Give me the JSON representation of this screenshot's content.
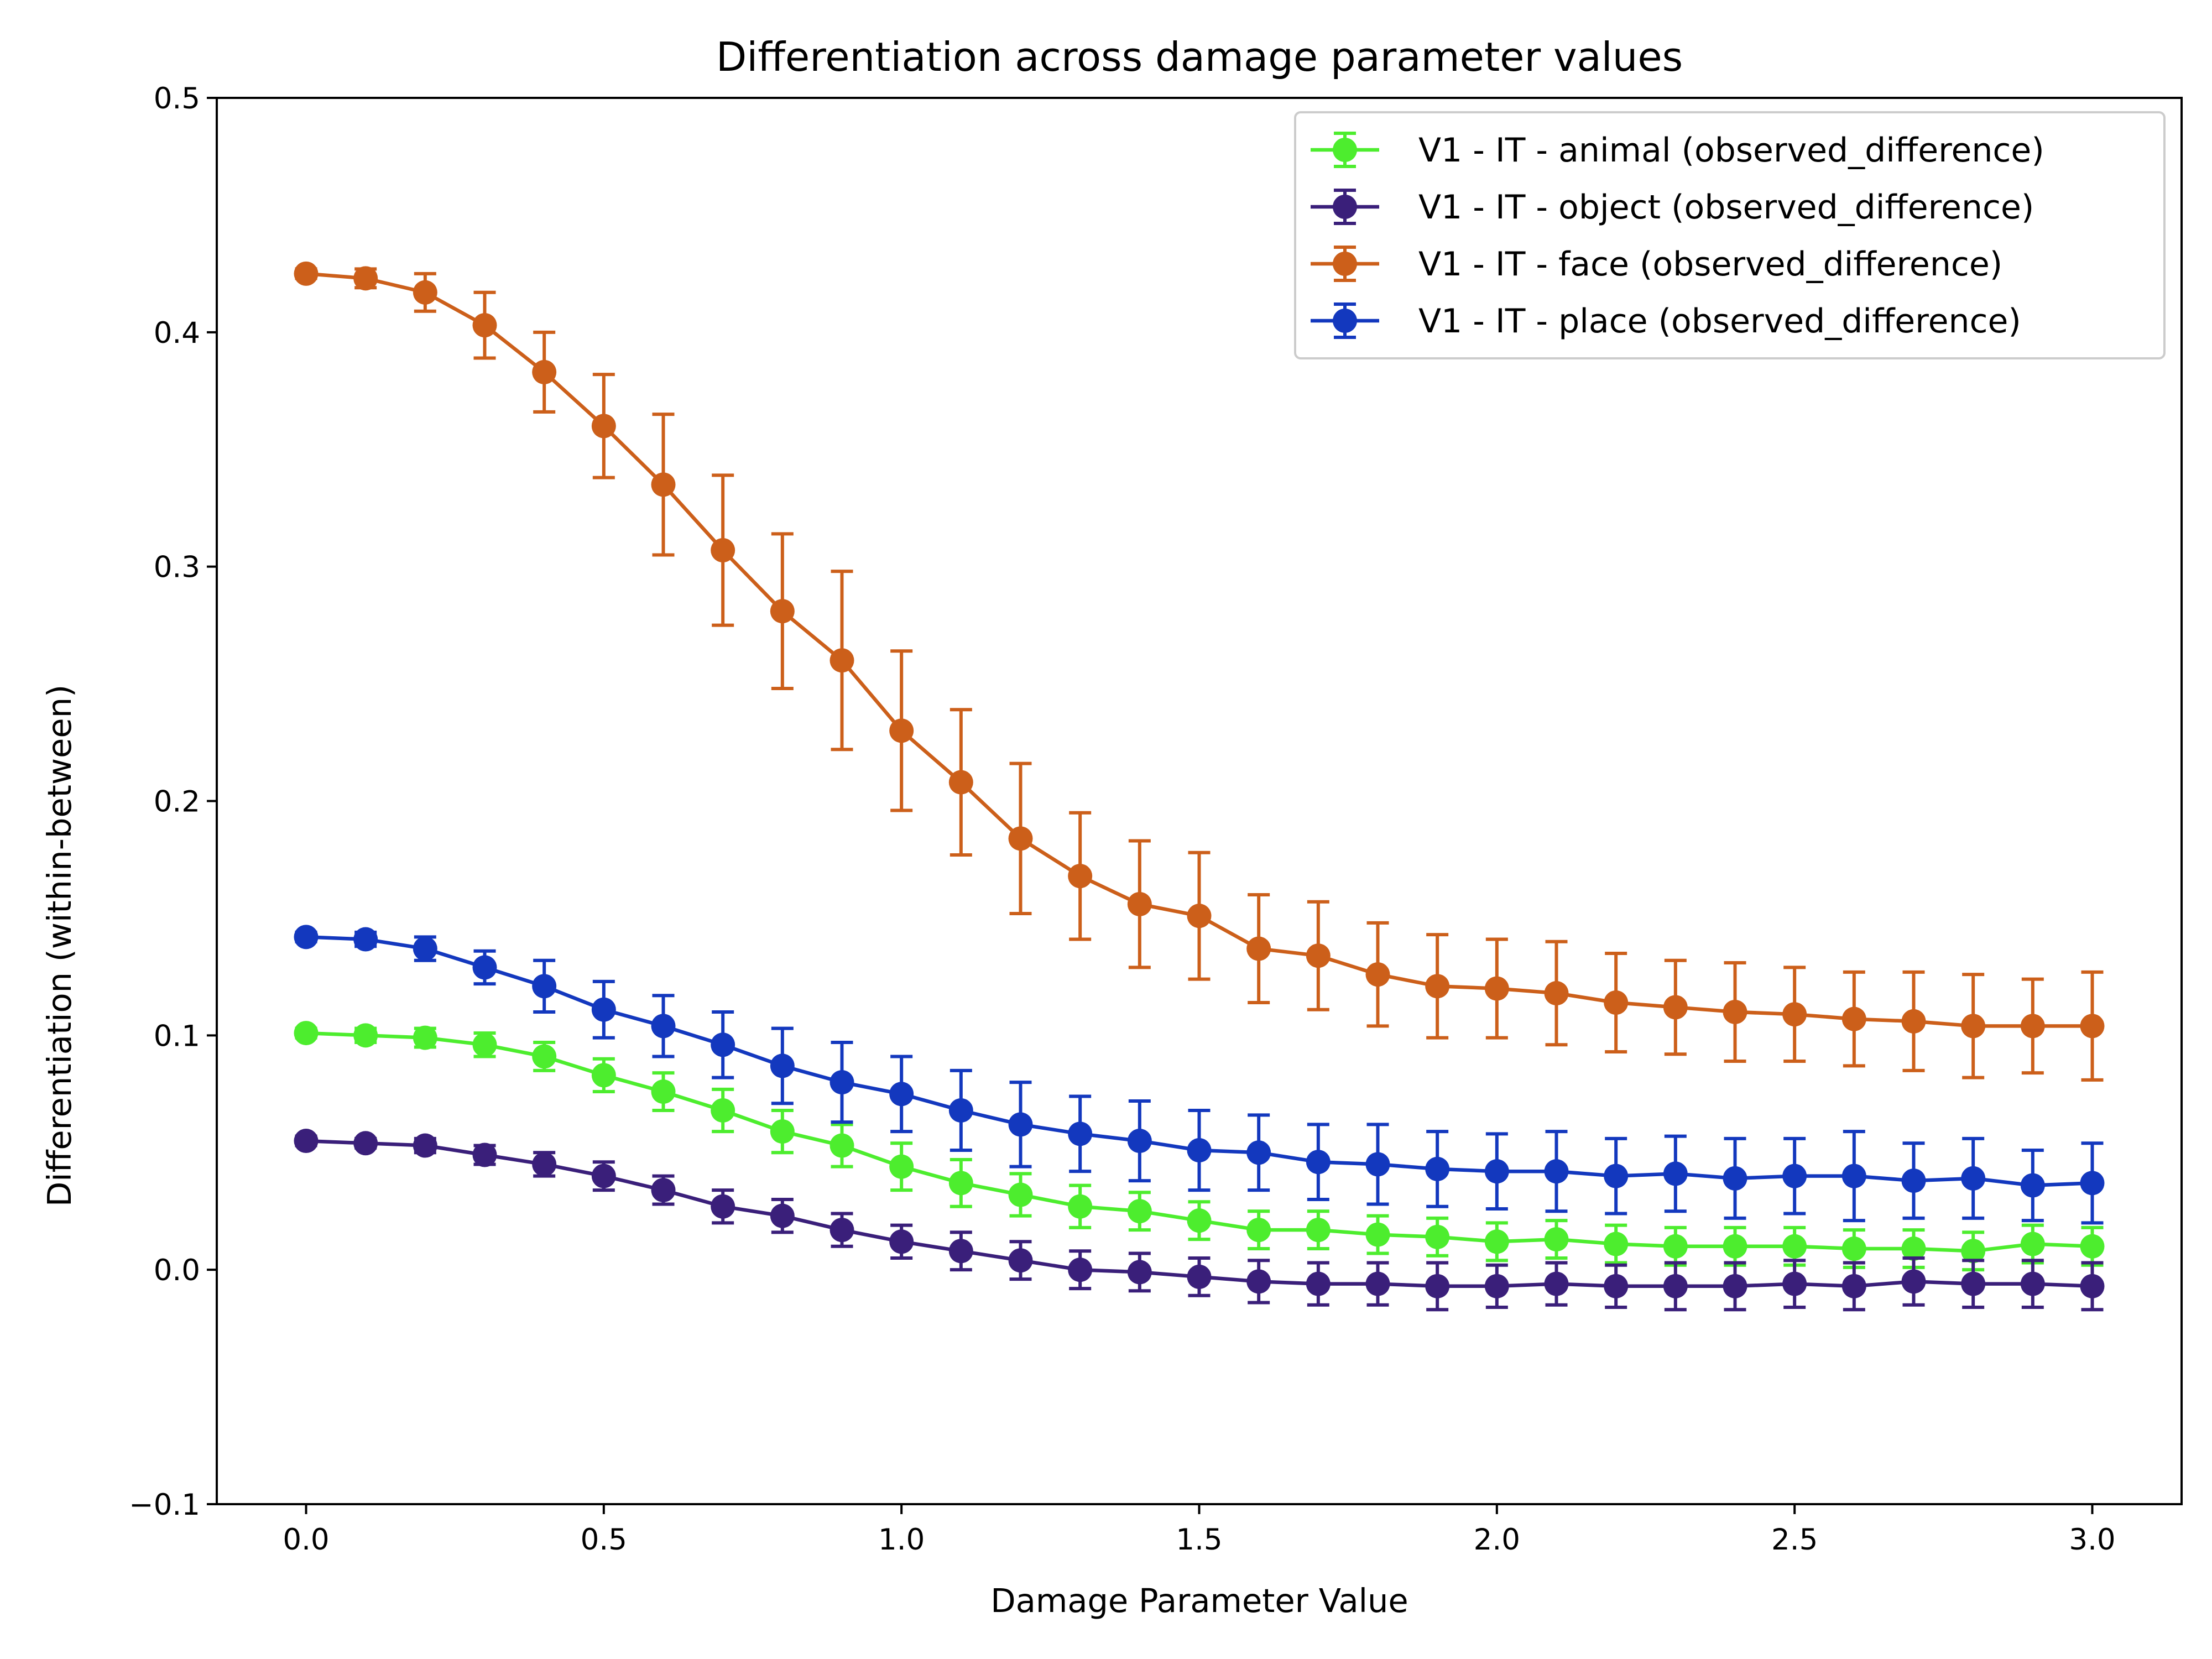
{
  "chart_data": {
    "type": "line",
    "title": "Differentiation across damage parameter values",
    "xlabel": "Damage Parameter Value",
    "ylabel": "Differentiation (within-between)",
    "xlim": [
      -0.15,
      3.15
    ],
    "ylim": [
      -0.1,
      0.5
    ],
    "xticks": [
      0.0,
      0.5,
      1.0,
      1.5,
      2.0,
      2.5,
      3.0
    ],
    "xtick_labels": [
      "0.0",
      "0.5",
      "1.0",
      "1.5",
      "2.0",
      "2.5",
      "3.0"
    ],
    "yticks": [
      -0.1,
      0.0,
      0.1,
      0.2,
      0.3,
      0.4,
      0.5
    ],
    "ytick_labels": [
      "−0.1",
      "0.0",
      "0.1",
      "0.2",
      "0.3",
      "0.4",
      "0.5"
    ],
    "grid": false,
    "legend_position": "upper right",
    "x": [
      0.0,
      0.1,
      0.2,
      0.3,
      0.4,
      0.5,
      0.6,
      0.7,
      0.8,
      0.9,
      1.0,
      1.1,
      1.2,
      1.3,
      1.4,
      1.5,
      1.6,
      1.7,
      1.8,
      1.9,
      2.0,
      2.1,
      2.2,
      2.3,
      2.4,
      2.5,
      2.6,
      2.7,
      2.8,
      2.9,
      3.0
    ],
    "series": [
      {
        "name": "V1 - IT - animal (observed_difference)",
        "color": "#4ded2e",
        "values": [
          0.101,
          0.1,
          0.099,
          0.096,
          0.091,
          0.083,
          0.076,
          0.068,
          0.059,
          0.053,
          0.044,
          0.037,
          0.032,
          0.027,
          0.025,
          0.021,
          0.017,
          0.017,
          0.015,
          0.014,
          0.012,
          0.013,
          0.011,
          0.01,
          0.01,
          0.01,
          0.009,
          0.009,
          0.008,
          0.011,
          0.01
        ],
        "errors": [
          0.002,
          0.003,
          0.004,
          0.005,
          0.006,
          0.007,
          0.008,
          0.009,
          0.009,
          0.009,
          0.01,
          0.01,
          0.009,
          0.009,
          0.008,
          0.008,
          0.008,
          0.008,
          0.008,
          0.008,
          0.008,
          0.008,
          0.008,
          0.008,
          0.008,
          0.008,
          0.008,
          0.008,
          0.008,
          0.008,
          0.008
        ]
      },
      {
        "name": "V1 - IT - object (observed_difference)",
        "color": "#3a1f7a",
        "values": [
          0.055,
          0.054,
          0.053,
          0.049,
          0.045,
          0.04,
          0.034,
          0.027,
          0.023,
          0.017,
          0.012,
          0.008,
          0.004,
          0.0,
          -0.001,
          -0.003,
          -0.005,
          -0.006,
          -0.006,
          -0.007,
          -0.007,
          -0.006,
          -0.007,
          -0.007,
          -0.007,
          -0.006,
          -0.007,
          -0.005,
          -0.006,
          -0.006,
          -0.007
        ],
        "errors": [
          0.002,
          0.002,
          0.003,
          0.004,
          0.005,
          0.006,
          0.006,
          0.007,
          0.007,
          0.007,
          0.007,
          0.008,
          0.008,
          0.008,
          0.008,
          0.008,
          0.009,
          0.009,
          0.009,
          0.01,
          0.009,
          0.009,
          0.009,
          0.01,
          0.01,
          0.01,
          0.01,
          0.01,
          0.01,
          0.01,
          0.01
        ]
      },
      {
        "name": "V1 - IT - face (observed_difference)",
        "color": "#cc5f1a",
        "values": [
          0.425,
          0.423,
          0.417,
          0.403,
          0.383,
          0.36,
          0.335,
          0.307,
          0.281,
          0.26,
          0.23,
          0.208,
          0.184,
          0.168,
          0.156,
          0.151,
          0.137,
          0.134,
          0.126,
          0.121,
          0.12,
          0.118,
          0.114,
          0.112,
          0.11,
          0.109,
          0.107,
          0.106,
          0.104,
          0.104,
          0.104
        ],
        "errors": [
          0.002,
          0.004,
          0.008,
          0.014,
          0.017,
          0.022,
          0.03,
          0.032,
          0.033,
          0.038,
          0.034,
          0.031,
          0.032,
          0.027,
          0.027,
          0.027,
          0.023,
          0.023,
          0.022,
          0.022,
          0.021,
          0.022,
          0.021,
          0.02,
          0.021,
          0.02,
          0.02,
          0.021,
          0.022,
          0.02,
          0.023
        ]
      },
      {
        "name": "V1 - IT - place (observed_difference)",
        "color": "#1338be",
        "values": [
          0.142,
          0.141,
          0.137,
          0.129,
          0.121,
          0.111,
          0.104,
          0.096,
          0.087,
          0.08,
          0.075,
          0.068,
          0.062,
          0.058,
          0.055,
          0.051,
          0.05,
          0.046,
          0.045,
          0.043,
          0.042,
          0.042,
          0.04,
          0.041,
          0.039,
          0.04,
          0.04,
          0.038,
          0.039,
          0.036,
          0.037
        ],
        "errors": [
          0.002,
          0.003,
          0.005,
          0.007,
          0.011,
          0.012,
          0.013,
          0.014,
          0.016,
          0.017,
          0.016,
          0.017,
          0.018,
          0.016,
          0.017,
          0.017,
          0.016,
          0.016,
          0.017,
          0.016,
          0.016,
          0.017,
          0.016,
          0.016,
          0.017,
          0.016,
          0.019,
          0.016,
          0.017,
          0.015,
          0.017
        ]
      }
    ]
  }
}
